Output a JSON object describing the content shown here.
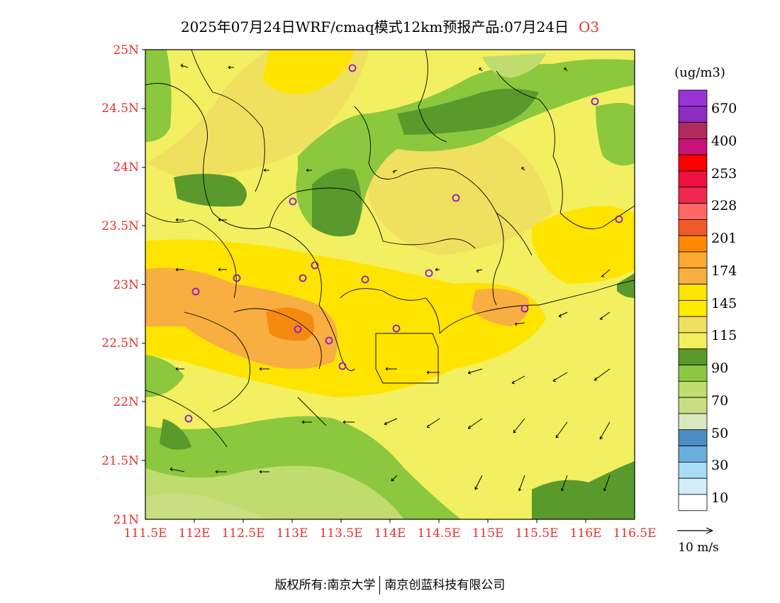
{
  "title": "2025年07月24日WRF/cmaq模式12km预报产品:07月24日",
  "pollutant": "O3",
  "lat_labels": [
    "25N",
    "24.5N",
    "24N",
    "23.5N",
    "23N",
    "22.5N",
    "22N",
    "21.5N",
    "21N"
  ],
  "lon_labels": [
    "111.5E",
    "112E",
    "112.5E",
    "113E",
    "113.5E",
    "114E",
    "114.5E",
    "115E",
    "115.5E",
    "116E",
    "116.5E"
  ],
  "legend": {
    "unit": "(ug/m3)",
    "labels": [
      "670",
      "400",
      "253",
      "228",
      "201",
      "174",
      "145",
      "115",
      "90",
      "70",
      "50",
      "30",
      "10"
    ],
    "colors": [
      "#9a33d6",
      "#8e2bc0",
      "#b02a5e",
      "#c8127a",
      "#ff0000",
      "#ee1040",
      "#f02850",
      "#ff6666",
      "#f05a28",
      "#ff8800",
      "#ffa830",
      "#f8ae40",
      "#ffe400",
      "#ffec00",
      "#f0e060",
      "#f2f060",
      "#5a9a2c",
      "#8cc83e",
      "#c0dc6e",
      "#c8de80",
      "#dce8c0",
      "#4a8ec4",
      "#6aaede",
      "#a8dcf4",
      "#d2eef8",
      "#ffffff"
    ]
  },
  "wind_reference": {
    "label": "10 m/s"
  },
  "colors": {
    "ozone_high": "#f8a030",
    "ozone_peak": "#f58a10",
    "ozone_medium": "#ffe400",
    "ozone_low": "#f2f060",
    "vegetation_dark": "#5a9a2c",
    "vegetation_mid": "#8cc83e",
    "vegetation_light": "#c0dc6e"
  },
  "footer": {
    "left": "版权所有:南京大学",
    "right": "南京创蓝科技有限公司"
  }
}
